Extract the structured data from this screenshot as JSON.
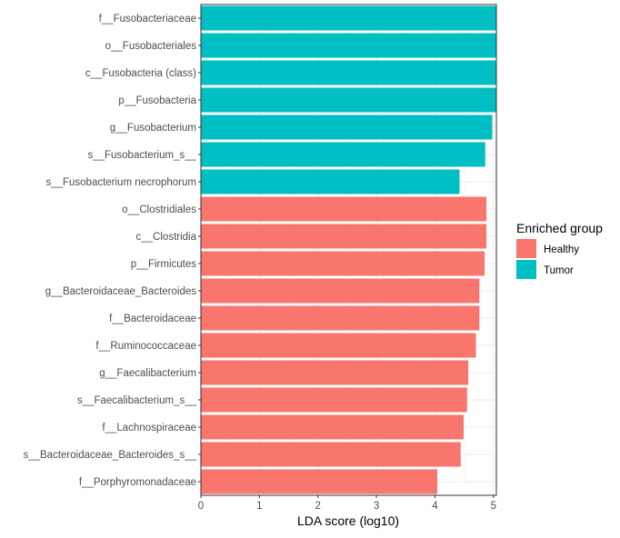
{
  "chart_data": {
    "type": "bar",
    "orientation": "horizontal",
    "title": "",
    "xlabel": "LDA score (log10)",
    "ylabel": "",
    "xlim": [
      0,
      5.05
    ],
    "xticks": [
      0,
      1,
      2,
      3,
      4,
      5
    ],
    "grid": true,
    "legend": {
      "title": "Enriched group",
      "placement": "right",
      "entries": [
        {
          "name": "Healthy",
          "color": "#F8766D"
        },
        {
          "name": "Tumor",
          "color": "#00BFC4"
        }
      ]
    },
    "categories": [
      "f__Fusobacteriaceae",
      "o__Fusobacteriales",
      "c__Fusobacteria (class)",
      "p__Fusobacteria",
      "g__Fusobacterium",
      "s__Fusobacterium_s__",
      "s__Fusobacterium necrophorum",
      "o__Clostridiales",
      "c__Clostridia",
      "p__Firmicutes",
      "g__Bacteroidaceae_Bacteroides",
      "f__Bacteroidaceae",
      "f__Ruminococcaceae",
      "g__Faecalibacterium",
      "s__Faecalibacterium_s__",
      "f__Lachnospiraceae",
      "s__Bacteroidaceae_Bacteroides_s__",
      "f__Porphyromonadaceae"
    ],
    "values": [
      5.05,
      5.05,
      5.05,
      5.05,
      4.98,
      4.86,
      4.42,
      4.88,
      4.88,
      4.85,
      4.76,
      4.76,
      4.7,
      4.57,
      4.55,
      4.49,
      4.44,
      4.04
    ],
    "groups": [
      "Tumor",
      "Tumor",
      "Tumor",
      "Tumor",
      "Tumor",
      "Tumor",
      "Tumor",
      "Healthy",
      "Healthy",
      "Healthy",
      "Healthy",
      "Healthy",
      "Healthy",
      "Healthy",
      "Healthy",
      "Healthy",
      "Healthy",
      "Healthy"
    ]
  }
}
